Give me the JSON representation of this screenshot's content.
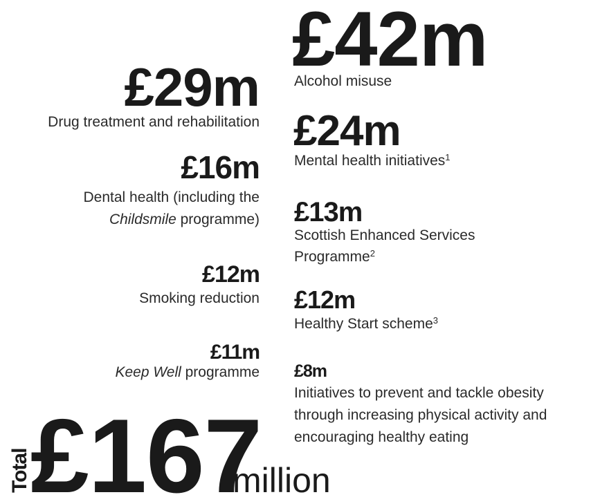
{
  "left_column": [
    {
      "amount": "£29m",
      "label": "Drug treatment and rehabilitation"
    },
    {
      "amount": "£16m",
      "label": [
        "Dental health (including the",
        "Childsmile",
        " programme)"
      ]
    },
    {
      "amount": "£12m",
      "label": "Smoking reduction"
    },
    {
      "amount": "£11m",
      "label": [
        "Keep Well",
        " programme"
      ]
    }
  ],
  "right_column": [
    {
      "amount": "£42m",
      "label": "Alcohol misuse"
    },
    {
      "amount": "£24m",
      "label": "Mental health initiatives",
      "note": "1"
    },
    {
      "amount": "£13m",
      "label": [
        "Scottish Enhanced Services",
        "Programme"
      ],
      "note": "2"
    },
    {
      "amount": "£12m",
      "label": "Healthy Start scheme",
      "note": "3"
    },
    {
      "amount": "£8m",
      "label": [
        "Initiatives to prevent and tackle obesity",
        "through increasing physical activity and",
        "encouraging healthy eating"
      ]
    }
  ],
  "total": {
    "label": "Total",
    "amount": "£167",
    "unit": "million"
  }
}
